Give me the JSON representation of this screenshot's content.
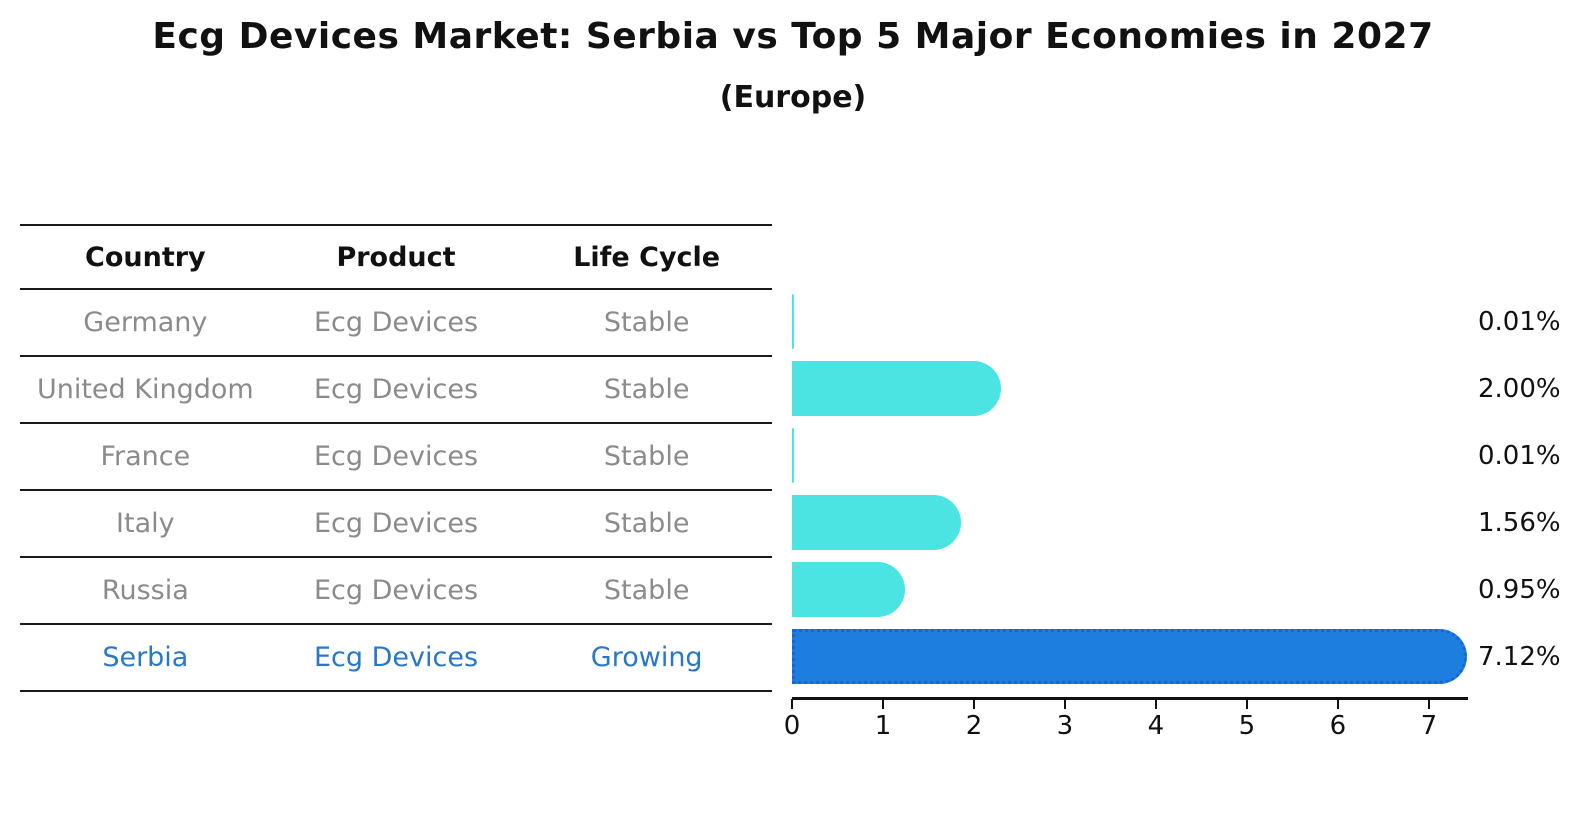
{
  "title": "Ecg Devices Market: Serbia vs Top 5 Major Economies in 2027",
  "subtitle": "(Europe)",
  "table": {
    "headers": [
      "Country",
      "Product",
      "Life Cycle"
    ],
    "rows": [
      {
        "country": "Germany",
        "product": "Ecg Devices",
        "life_cycle": "Stable",
        "highlight": false
      },
      {
        "country": "United Kingdom",
        "product": "Ecg Devices",
        "life_cycle": "Stable",
        "highlight": false
      },
      {
        "country": "France",
        "product": "Ecg Devices",
        "life_cycle": "Stable",
        "highlight": false
      },
      {
        "country": "Italy",
        "product": "Ecg Devices",
        "life_cycle": "Stable",
        "highlight": false
      },
      {
        "country": "Russia",
        "product": "Ecg Devices",
        "life_cycle": "Stable",
        "highlight": false
      },
      {
        "country": "Serbia",
        "product": "Ecg Devices",
        "life_cycle": "Growing",
        "highlight": true
      }
    ]
  },
  "chart_data": {
    "type": "bar",
    "orientation": "horizontal",
    "title": "Ecg Devices Market: Serbia vs Top 5 Major Economies in 2027",
    "subtitle": "(Europe)",
    "categories": [
      "Germany",
      "United Kingdom",
      "France",
      "Italy",
      "Russia",
      "Serbia"
    ],
    "values": [
      0.01,
      2.0,
      0.01,
      1.56,
      0.95,
      7.12
    ],
    "value_labels": [
      "0.01%",
      "2.00%",
      "0.01%",
      "1.56%",
      "0.95%",
      "7.12%"
    ],
    "highlight_index": 5,
    "x_ticks": [
      "0",
      "1",
      "2",
      "3",
      "4",
      "5",
      "6",
      "7"
    ],
    "xlim": [
      0,
      7.43
    ],
    "grid": false,
    "legend": "none",
    "bar_color": "#4be4e2",
    "highlight_bar_color": "#1e7ee0",
    "highlight_border_color": "#1566d4",
    "highlight_text_color": "#2878c8",
    "row_text_color": "#8b8b8b"
  }
}
